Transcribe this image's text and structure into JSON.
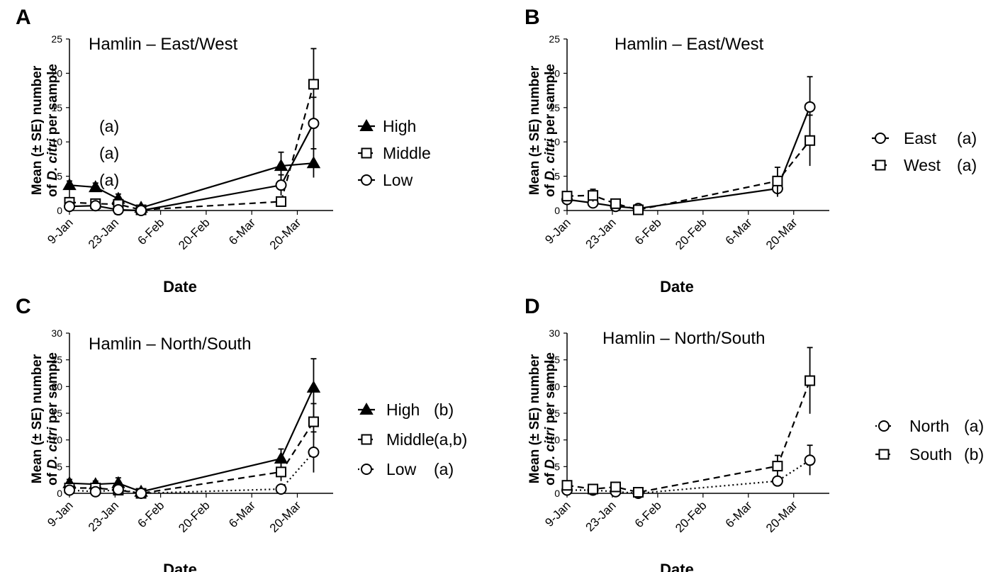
{
  "figure": {
    "colors": {
      "ink": "#000000",
      "paper": "#ffffff"
    }
  },
  "chart_data": [
    {
      "panel": "A",
      "type": "line",
      "title": "Hamlin – East/West",
      "xlabel": "Date",
      "ylabel_line1": "Mean (± SE) number",
      "ylabel_line2_pre": "of ",
      "ylabel_line2_em": "D. citri",
      "ylabel_line2_post": " per sample",
      "ylim": [
        0,
        25
      ],
      "yticks": [
        "0",
        "5",
        "10",
        "15",
        "20",
        "25"
      ],
      "xticks": [
        "9-Jan",
        "23-Jan",
        "6-Feb",
        "20-Feb",
        "6-Mar",
        "20-Mar"
      ],
      "x_dates": [
        "9-Jan",
        "23-Jan",
        "6-Feb",
        "20-Feb",
        "6-Mar",
        "20-Mar"
      ],
      "series": [
        {
          "name": "High",
          "group": "(a)",
          "marker": "triangle",
          "filled": true,
          "style": "solid",
          "x": [
            "9-Jan",
            "17-Jan",
            "24-Jan",
            "31-Jan",
            "15-Mar",
            "25-Mar"
          ],
          "y": [
            3.7,
            3.4,
            1.7,
            0.4,
            6.5,
            6.9
          ],
          "se": [
            0.6,
            0.6,
            0.7,
            0.3,
            2.0,
            2.1
          ]
        },
        {
          "name": "Middle",
          "group": "(a)",
          "marker": "square",
          "filled": false,
          "style": "dashed",
          "x": [
            "9-Jan",
            "17-Jan",
            "24-Jan",
            "31-Jan",
            "15-Mar",
            "25-Mar"
          ],
          "y": [
            1.2,
            1.0,
            0.9,
            0.1,
            1.3,
            18.4
          ],
          "se": [
            0.4,
            0.3,
            0.3,
            0.1,
            0.6,
            5.2
          ]
        },
        {
          "name": "Low",
          "group": "(a)",
          "marker": "circle",
          "filled": false,
          "style": "solid",
          "x": [
            "9-Jan",
            "17-Jan",
            "24-Jan",
            "31-Jan",
            "15-Mar",
            "25-Mar"
          ],
          "y": [
            0.6,
            0.7,
            0.1,
            0.0,
            3.7,
            12.7
          ],
          "se": [
            0.3,
            0.3,
            0.1,
            0.1,
            1.5,
            3.8
          ]
        }
      ]
    },
    {
      "panel": "B",
      "type": "line",
      "title": "Hamlin – East/West",
      "xlabel": "Date",
      "ylabel_line1": "Mean (± SE) number",
      "ylabel_line2_pre": "of ",
      "ylabel_line2_em": "D. citri",
      "ylabel_line2_post": " per sample",
      "ylim": [
        0,
        25
      ],
      "yticks": [
        "0",
        "5",
        "10",
        "15",
        "20",
        "25"
      ],
      "xticks": [
        "9-Jan",
        "23-Jan",
        "6-Feb",
        "20-Feb",
        "6-Mar",
        "20-Mar"
      ],
      "x_dates": [
        "9-Jan",
        "23-Jan",
        "6-Feb",
        "20-Feb",
        "6-Mar",
        "20-Mar"
      ],
      "series": [
        {
          "name": "East",
          "group": "(a)",
          "marker": "circle",
          "filled": false,
          "style": "solid",
          "x": [
            "9-Jan",
            "17-Jan",
            "24-Jan",
            "31-Jan",
            "15-Mar",
            "25-Mar"
          ],
          "y": [
            1.6,
            1.1,
            0.6,
            0.3,
            3.2,
            15.1
          ],
          "se": [
            0.5,
            0.4,
            0.3,
            0.2,
            1.2,
            4.4
          ]
        },
        {
          "name": "West",
          "group": "(a)",
          "marker": "square",
          "filled": false,
          "style": "dashed",
          "x": [
            "9-Jan",
            "17-Jan",
            "24-Jan",
            "31-Jan",
            "15-Mar",
            "25-Mar"
          ],
          "y": [
            2.1,
            2.2,
            1.0,
            0.1,
            4.3,
            10.2
          ],
          "se": [
            0.6,
            0.9,
            0.4,
            0.1,
            2.0,
            3.7
          ]
        }
      ]
    },
    {
      "panel": "C",
      "type": "line",
      "title": "Hamlin – North/South",
      "xlabel": "Date",
      "ylabel_line1": "Mean  (± SE) number",
      "ylabel_line2_pre": "of ",
      "ylabel_line2_em": "D. citri",
      "ylabel_line2_post": " per sample",
      "ylim": [
        0,
        30
      ],
      "yticks": [
        "0",
        "5",
        "10",
        "15",
        "20",
        "25",
        "30"
      ],
      "xticks": [
        "9-Jan",
        "23-Jan",
        "6-Feb",
        "20-Feb",
        "6-Mar",
        "20-Mar"
      ],
      "x_dates": [
        "9-Jan",
        "23-Jan",
        "6-Feb",
        "20-Feb",
        "6-Mar",
        "20-Mar"
      ],
      "series": [
        {
          "name": "High",
          "group": "(b)",
          "marker": "triangle",
          "filled": true,
          "style": "solid",
          "x": [
            "9-Jan",
            "17-Jan",
            "24-Jan",
            "31-Jan",
            "15-Mar",
            "25-Mar"
          ],
          "y": [
            1.9,
            1.7,
            1.9,
            0.3,
            6.5,
            19.8
          ],
          "se": [
            0.7,
            0.6,
            1.0,
            0.2,
            1.8,
            5.4
          ]
        },
        {
          "name": "Middle",
          "group": "(a,b)",
          "marker": "square",
          "filled": false,
          "style": "dashed",
          "x": [
            "9-Jan",
            "17-Jan",
            "24-Jan",
            "31-Jan",
            "15-Mar",
            "25-Mar"
          ],
          "y": [
            1.0,
            1.0,
            0.6,
            0.0,
            4.0,
            13.4
          ],
          "se": [
            0.4,
            0.4,
            0.3,
            0.1,
            1.7,
            3.4
          ]
        },
        {
          "name": "Low",
          "group": "(a)",
          "marker": "circle",
          "filled": false,
          "style": "dotted",
          "x": [
            "9-Jan",
            "17-Jan",
            "24-Jan",
            "31-Jan",
            "15-Mar",
            "25-Mar"
          ],
          "y": [
            0.6,
            0.3,
            0.7,
            0.0,
            0.8,
            7.7
          ],
          "se": [
            0.3,
            0.2,
            0.4,
            0.1,
            0.4,
            3.8
          ]
        }
      ]
    },
    {
      "panel": "D",
      "type": "line",
      "title": "Hamlin – North/South",
      "xlabel": "Date",
      "ylabel_line1": "Mean (± SE) number",
      "ylabel_line2_pre": "of ",
      "ylabel_line2_em": "D. citri",
      "ylabel_line2_post": " per sample",
      "ylim": [
        0,
        30
      ],
      "yticks": [
        "0",
        "5",
        "10",
        "15",
        "20",
        "25",
        "30"
      ],
      "xticks": [
        "9-Jan",
        "23-Jan",
        "6-Feb",
        "20-Feb",
        "6-Mar",
        "20-Mar"
      ],
      "x_dates": [
        "9-Jan",
        "23-Jan",
        "6-Feb",
        "20-Feb",
        "6-Mar",
        "20-Mar"
      ],
      "series": [
        {
          "name": "North",
          "group": "(a)",
          "marker": "circle",
          "filled": false,
          "style": "dotted",
          "x": [
            "9-Jan",
            "17-Jan",
            "24-Jan",
            "31-Jan",
            "15-Mar",
            "25-Mar"
          ],
          "y": [
            0.6,
            0.6,
            0.3,
            0.0,
            2.3,
            6.2
          ],
          "se": [
            0.2,
            0.2,
            0.2,
            0.1,
            0.6,
            2.8
          ]
        },
        {
          "name": "South",
          "group": "(b)",
          "marker": "square",
          "filled": false,
          "style": "dashed",
          "x": [
            "9-Jan",
            "17-Jan",
            "24-Jan",
            "31-Jan",
            "15-Mar",
            "25-Mar"
          ],
          "y": [
            1.5,
            0.8,
            1.2,
            0.2,
            5.1,
            21.1
          ],
          "se": [
            0.5,
            0.3,
            0.4,
            0.2,
            2.0,
            6.2
          ]
        }
      ]
    }
  ]
}
